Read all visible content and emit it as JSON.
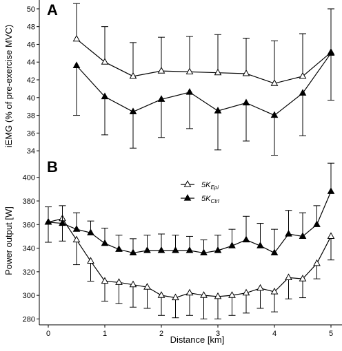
{
  "chart_data": [
    {
      "panel_label": "A",
      "type": "line",
      "ylabel": "iEMG (% of pre-exercise MVC)",
      "xlim": [
        0,
        5
      ],
      "ylim": [
        33,
        51
      ],
      "yticks": [
        34,
        36,
        38,
        40,
        42,
        44,
        46,
        48,
        50
      ],
      "series": [
        {
          "marker": "open-triangle",
          "x": [
            0.5,
            1,
            1.5,
            2,
            2.5,
            3,
            3.5,
            4,
            4.5,
            5
          ],
          "y": [
            46.6,
            44.0,
            42.4,
            43.0,
            42.9,
            42.8,
            42.7,
            41.6,
            42.4,
            45.1
          ],
          "err_up": [
            4.0,
            4.0,
            3.8,
            3.8,
            4.0,
            4.3,
            4.0,
            4.8,
            4.8,
            0.0
          ],
          "err_down": [
            0.0,
            0.0,
            0.0,
            0.0,
            0.0,
            0.0,
            0.0,
            0.0,
            0.0,
            0.0
          ]
        },
        {
          "marker": "filled-triangle",
          "x": [
            0.5,
            1,
            1.5,
            2,
            2.5,
            3,
            3.5,
            4,
            4.5,
            5
          ],
          "y": [
            43.6,
            40.1,
            38.4,
            39.8,
            40.6,
            38.5,
            39.4,
            38.0,
            40.5,
            45.0
          ],
          "err_up": [
            0.0,
            0.0,
            0.0,
            0.0,
            0.0,
            0.0,
            0.0,
            0.0,
            0.0,
            5.0
          ],
          "err_down": [
            5.6,
            4.3,
            4.1,
            4.3,
            4.1,
            4.4,
            4.3,
            4.5,
            4.8,
            5.3
          ]
        }
      ]
    },
    {
      "panel_label": "B",
      "type": "line",
      "xlabel": "Distance [km]",
      "ylabel": "Power output [W]",
      "xlim": [
        -0.15,
        5.15
      ],
      "ylim": [
        275,
        415
      ],
      "xticks": [
        0,
        1,
        2,
        3,
        4,
        5
      ],
      "yticks": [
        280,
        300,
        320,
        340,
        360,
        380,
        400
      ],
      "legend": [
        {
          "base": "5K",
          "sub": "Epi",
          "marker": "open-triangle"
        },
        {
          "base": "5K",
          "sub": "Ctrl",
          "marker": "filled-triangle"
        }
      ],
      "series": [
        {
          "marker": "open-triangle",
          "x": [
            0,
            0.25,
            0.5,
            0.75,
            1,
            1.25,
            1.5,
            1.75,
            2,
            2.25,
            2.5,
            2.75,
            3,
            3.25,
            3.5,
            3.75,
            4,
            4.25,
            4.5,
            4.75,
            5
          ],
          "y": [
            362,
            365,
            347,
            329,
            312,
            311,
            309,
            307,
            300,
            298,
            302,
            300,
            299,
            300,
            302,
            306,
            303,
            315,
            314,
            327,
            350
          ],
          "err_up": [
            0,
            0,
            0,
            0,
            0,
            0,
            0,
            0,
            0,
            0,
            0,
            0,
            0,
            0,
            0,
            0,
            0,
            0,
            0,
            0,
            0
          ],
          "err_down": [
            17,
            19,
            21,
            17,
            17,
            18,
            19,
            18,
            17,
            17,
            19,
            20,
            19,
            17,
            17,
            17,
            17,
            18,
            16,
            13,
            20
          ]
        },
        {
          "marker": "filled-triangle",
          "x": [
            0,
            0.25,
            0.5,
            0.75,
            1,
            1.25,
            1.5,
            1.75,
            2,
            2.25,
            2.5,
            2.75,
            3,
            3.25,
            3.5,
            3.75,
            4,
            4.25,
            4.5,
            4.75,
            5
          ],
          "y": [
            362,
            361,
            356,
            353,
            344,
            339,
            336,
            338,
            338,
            338,
            338,
            336,
            338,
            342,
            347,
            342,
            336,
            352,
            350,
            360,
            388
          ],
          "err_up": [
            13,
            15,
            14,
            10,
            13,
            12,
            12,
            13,
            14,
            13,
            12,
            11,
            13,
            14,
            20,
            19,
            20,
            20,
            20,
            16,
            24
          ],
          "err_down": [
            0,
            0,
            0,
            0,
            0,
            0,
            0,
            0,
            0,
            0,
            0,
            0,
            0,
            0,
            0,
            0,
            0,
            0,
            0,
            0,
            0
          ]
        }
      ]
    }
  ]
}
